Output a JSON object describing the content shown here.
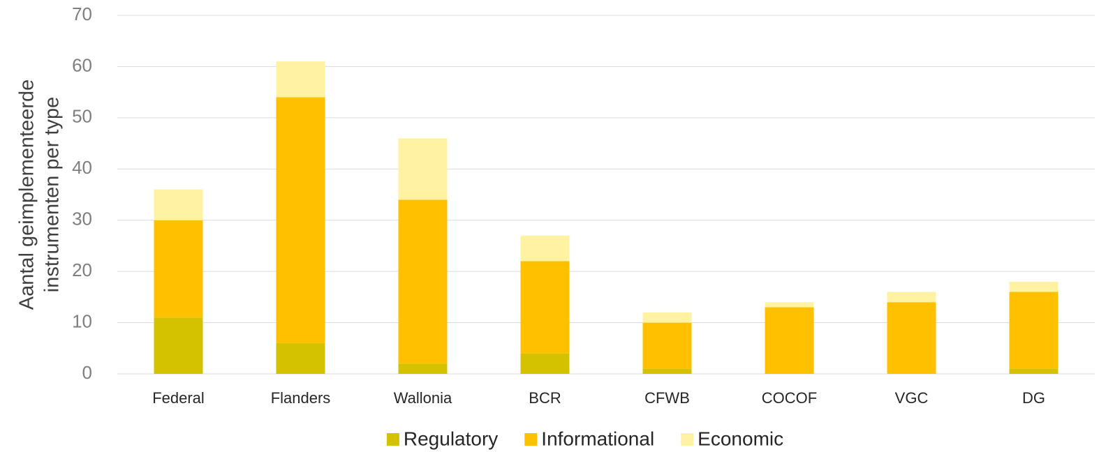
{
  "chart_data": {
    "type": "stacked_bar",
    "y_label": [
      "Aantal geimplementeerde",
      "instrumenten per type"
    ],
    "categories": [
      "Federal",
      "Flanders",
      "Wallonia",
      "BCR",
      "CFWB",
      "COCOF",
      "VGC",
      "DG"
    ],
    "series": [
      {
        "name": "Regulatory",
        "color": "#d4c200",
        "values": [
          11,
          6,
          2,
          4,
          1,
          0,
          0,
          1
        ]
      },
      {
        "name": "Informational",
        "color": "#ffc000",
        "values": [
          19,
          48,
          32,
          18,
          9,
          13,
          14,
          15
        ]
      },
      {
        "name": "Economic",
        "color": "#fff2a3",
        "values": [
          6,
          7,
          12,
          5,
          2,
          1,
          2,
          2
        ]
      }
    ],
    "ylim": [
      0,
      70
    ],
    "yticks": [
      0,
      10,
      20,
      30,
      40,
      50,
      60,
      70
    ],
    "grid": true,
    "legend": "bottom"
  }
}
